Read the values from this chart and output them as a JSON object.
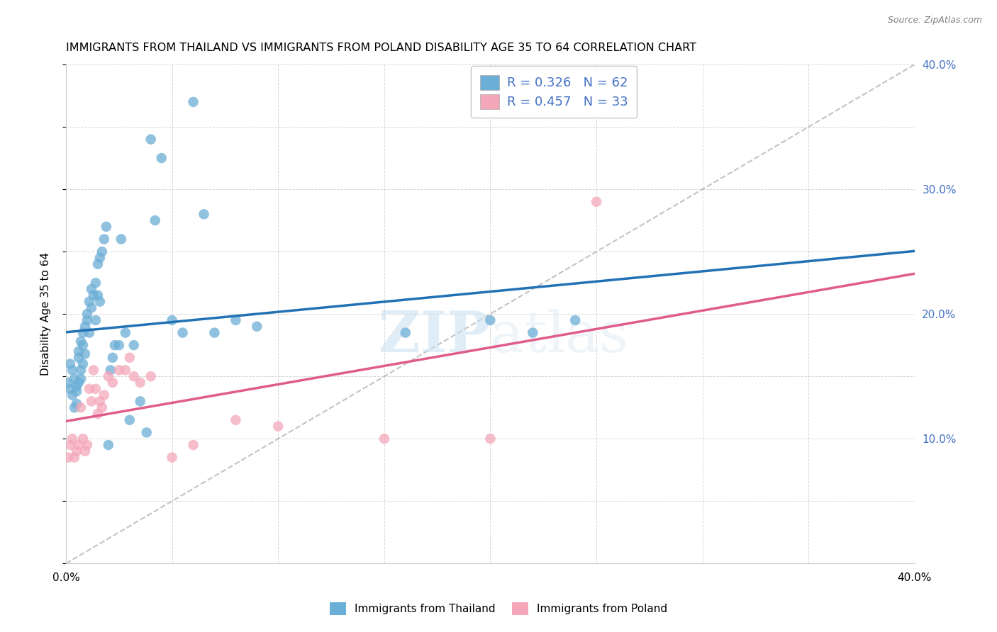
{
  "title": "IMMIGRANTS FROM THAILAND VS IMMIGRANTS FROM POLAND DISABILITY AGE 35 TO 64 CORRELATION CHART",
  "source": "Source: ZipAtlas.com",
  "ylabel": "Disability Age 35 to 64",
  "xlim": [
    0,
    0.4
  ],
  "ylim": [
    0,
    0.4
  ],
  "right_ytick_positions": [
    0.1,
    0.2,
    0.3,
    0.4
  ],
  "thailand_R": 0.326,
  "thailand_N": 62,
  "poland_R": 0.457,
  "poland_N": 33,
  "thailand_color": "#6baed6",
  "poland_color": "#f4a7b9",
  "thailand_line_color": "#2171b5",
  "poland_line_color": "#e05c8a",
  "ref_line_color": "#aaaaaa",
  "watermark_zip": "ZIP",
  "watermark_atlas": "atlas",
  "thailand_x": [
    0.001,
    0.002,
    0.002,
    0.003,
    0.003,
    0.004,
    0.004,
    0.005,
    0.005,
    0.005,
    0.006,
    0.006,
    0.006,
    0.007,
    0.007,
    0.007,
    0.008,
    0.008,
    0.008,
    0.009,
    0.009,
    0.01,
    0.01,
    0.011,
    0.011,
    0.012,
    0.012,
    0.013,
    0.014,
    0.014,
    0.015,
    0.015,
    0.016,
    0.016,
    0.017,
    0.018,
    0.019,
    0.02,
    0.021,
    0.022,
    0.023,
    0.025,
    0.026,
    0.028,
    0.03,
    0.032,
    0.035,
    0.038,
    0.04,
    0.042,
    0.045,
    0.05,
    0.055,
    0.06,
    0.065,
    0.07,
    0.08,
    0.09,
    0.16,
    0.2,
    0.22,
    0.24
  ],
  "thailand_y": [
    0.145,
    0.16,
    0.14,
    0.155,
    0.135,
    0.148,
    0.125,
    0.142,
    0.138,
    0.128,
    0.17,
    0.165,
    0.145,
    0.178,
    0.155,
    0.148,
    0.185,
    0.175,
    0.16,
    0.19,
    0.168,
    0.2,
    0.195,
    0.21,
    0.185,
    0.22,
    0.205,
    0.215,
    0.225,
    0.195,
    0.24,
    0.215,
    0.245,
    0.21,
    0.25,
    0.26,
    0.27,
    0.095,
    0.155,
    0.165,
    0.175,
    0.175,
    0.26,
    0.185,
    0.115,
    0.175,
    0.13,
    0.105,
    0.34,
    0.275,
    0.325,
    0.195,
    0.185,
    0.37,
    0.28,
    0.185,
    0.195,
    0.19,
    0.185,
    0.195,
    0.185,
    0.195
  ],
  "poland_x": [
    0.001,
    0.002,
    0.003,
    0.004,
    0.005,
    0.006,
    0.007,
    0.008,
    0.009,
    0.01,
    0.011,
    0.012,
    0.013,
    0.014,
    0.015,
    0.016,
    0.017,
    0.018,
    0.02,
    0.022,
    0.025,
    0.028,
    0.03,
    0.032,
    0.035,
    0.04,
    0.05,
    0.06,
    0.08,
    0.1,
    0.15,
    0.2,
    0.25
  ],
  "poland_y": [
    0.085,
    0.095,
    0.1,
    0.085,
    0.09,
    0.095,
    0.125,
    0.1,
    0.09,
    0.095,
    0.14,
    0.13,
    0.155,
    0.14,
    0.12,
    0.13,
    0.125,
    0.135,
    0.15,
    0.145,
    0.155,
    0.155,
    0.165,
    0.15,
    0.145,
    0.15,
    0.085,
    0.095,
    0.115,
    0.11,
    0.1,
    0.1,
    0.29
  ]
}
